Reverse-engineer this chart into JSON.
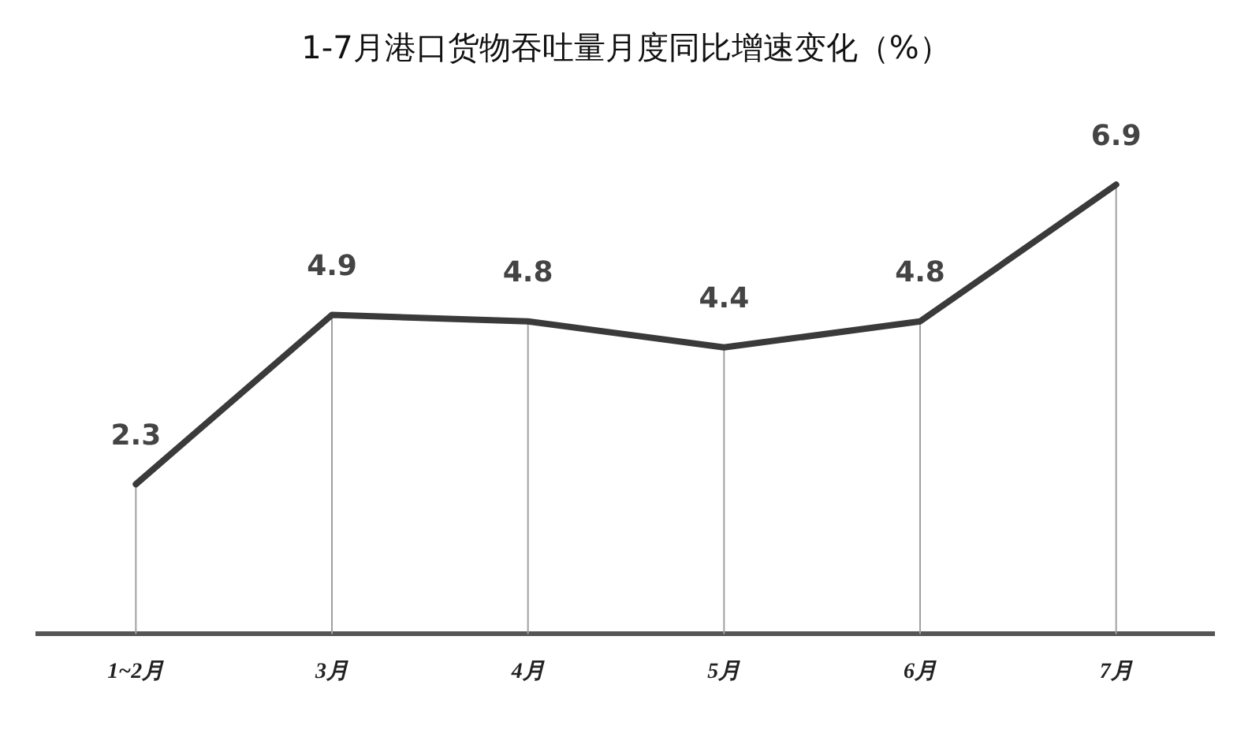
{
  "chart_data": {
    "type": "line",
    "title": "1-7月港口货物吞吐量月度同比增速变化（%）",
    "categories": [
      "1~2月",
      "3月",
      "4月",
      "5月",
      "6月",
      "7月"
    ],
    "values": [
      2.3,
      4.9,
      4.8,
      4.4,
      4.8,
      6.9
    ],
    "color": "#3a3a3a",
    "line_style": "solid",
    "grid": "x",
    "tick_labels": "x",
    "data_labels": true
  }
}
